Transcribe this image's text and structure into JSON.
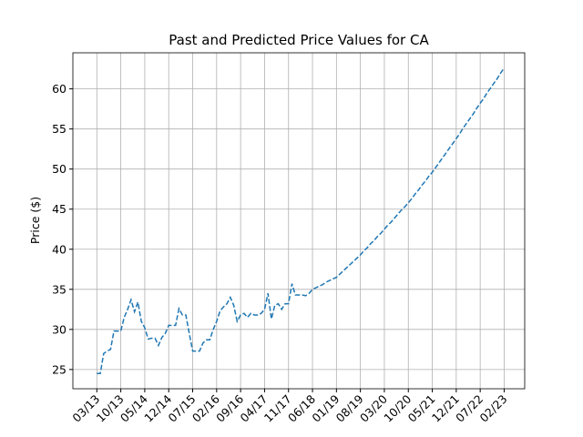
{
  "chart_data": {
    "type": "line",
    "title": "Past and Predicted Price Values for CA",
    "y_label": "Price ($)",
    "x": [
      "03/13",
      "04/13",
      "05/13",
      "06/13",
      "07/13",
      "08/13",
      "09/13",
      "10/13",
      "11/13",
      "12/13",
      "01/14",
      "02/14",
      "03/14",
      "04/14",
      "05/14",
      "06/14",
      "07/14",
      "08/14",
      "09/14",
      "10/14",
      "11/14",
      "12/14",
      "01/15",
      "02/15",
      "03/15",
      "04/15",
      "05/15",
      "06/15",
      "07/15",
      "08/15",
      "09/15",
      "10/15",
      "11/15",
      "12/15",
      "01/16",
      "02/16",
      "03/16",
      "04/16",
      "05/16",
      "06/16",
      "07/16",
      "08/16",
      "09/16",
      "10/16",
      "11/16",
      "12/16",
      "01/17",
      "02/17",
      "03/17",
      "04/17",
      "05/17",
      "06/17",
      "07/17",
      "08/17",
      "09/17",
      "10/17",
      "11/17",
      "12/17",
      "01/18",
      "02/18",
      "03/18",
      "04/18",
      "05/18",
      "06/18",
      "07/18",
      "08/18",
      "09/18",
      "10/18",
      "11/18",
      "12/18",
      "01/19",
      "02/19",
      "03/19",
      "04/19",
      "05/19",
      "06/19",
      "07/19",
      "08/19",
      "09/19",
      "10/19",
      "11/19",
      "12/19",
      "01/20",
      "02/20",
      "03/20",
      "04/20",
      "05/20",
      "06/20",
      "07/20",
      "08/20",
      "09/20",
      "10/20",
      "11/20",
      "12/20",
      "01/21",
      "02/21",
      "03/21",
      "04/21",
      "05/21",
      "06/21",
      "07/21",
      "08/21",
      "09/21",
      "10/21",
      "11/21",
      "12/21",
      "01/22",
      "02/22",
      "03/22",
      "04/22",
      "05/22",
      "06/22",
      "07/22",
      "08/22",
      "09/22",
      "10/22",
      "11/22",
      "12/22",
      "01/23",
      "02/23"
    ],
    "series": [
      {
        "color": "#1f77b4",
        "dashed": true,
        "values": [
          24.5,
          24.5,
          27,
          27.3,
          27.5,
          29.8,
          29.8,
          29.8,
          31.5,
          32.5,
          33.7,
          32.2,
          33.4,
          31,
          30.2,
          28.8,
          28.9,
          28.9,
          28,
          29,
          29.5,
          30.5,
          30.5,
          30.5,
          32.6,
          31.8,
          31.8,
          29.5,
          27.3,
          27.3,
          27.3,
          28.3,
          28.7,
          28.7,
          30,
          31,
          32.3,
          32.8,
          33.2,
          34,
          33,
          31,
          31.8,
          32,
          31.5,
          32,
          31.8,
          31.8,
          32,
          32.5,
          34.5,
          31.3,
          33,
          33.2,
          32.5,
          33.2,
          33.2,
          35.7,
          34.3,
          34.3,
          34.3,
          34.2,
          34.5,
          35,
          35.2,
          35.4,
          35.6,
          35.9,
          36.1,
          36.3,
          36.5,
          36.9,
          37.3,
          37.7,
          38.1,
          38.5,
          38.9,
          39.3,
          39.8,
          40.2,
          40.7,
          41.1,
          41.6,
          42.0,
          42.5,
          43.0,
          43.4,
          43.9,
          44.4,
          44.9,
          45.3,
          45.8,
          46.3,
          46.9,
          47.4,
          48.0,
          48.5,
          49.1,
          49.6,
          50.2,
          50.8,
          51.4,
          52.0,
          52.6,
          53.2,
          53.8,
          54.4,
          55.1,
          55.7,
          56.3,
          56.9,
          57.6,
          58.2,
          58.8,
          59.5,
          60.1,
          60.7,
          61.3,
          62.0,
          62.6
        ]
      }
    ],
    "xlim": [
      "08/12",
      "08/23"
    ],
    "xticks": [
      "03/13",
      "10/13",
      "05/14",
      "12/14",
      "07/15",
      "02/16",
      "09/16",
      "04/17",
      "11/17",
      "06/18",
      "01/19",
      "08/19",
      "03/20",
      "10/20",
      "05/21",
      "12/21",
      "07/22",
      "02/23"
    ],
    "ylim": [
      22.6,
      64.5
    ],
    "yticks": [
      25,
      30,
      35,
      40,
      45,
      50,
      55,
      60
    ],
    "grid": true
  }
}
